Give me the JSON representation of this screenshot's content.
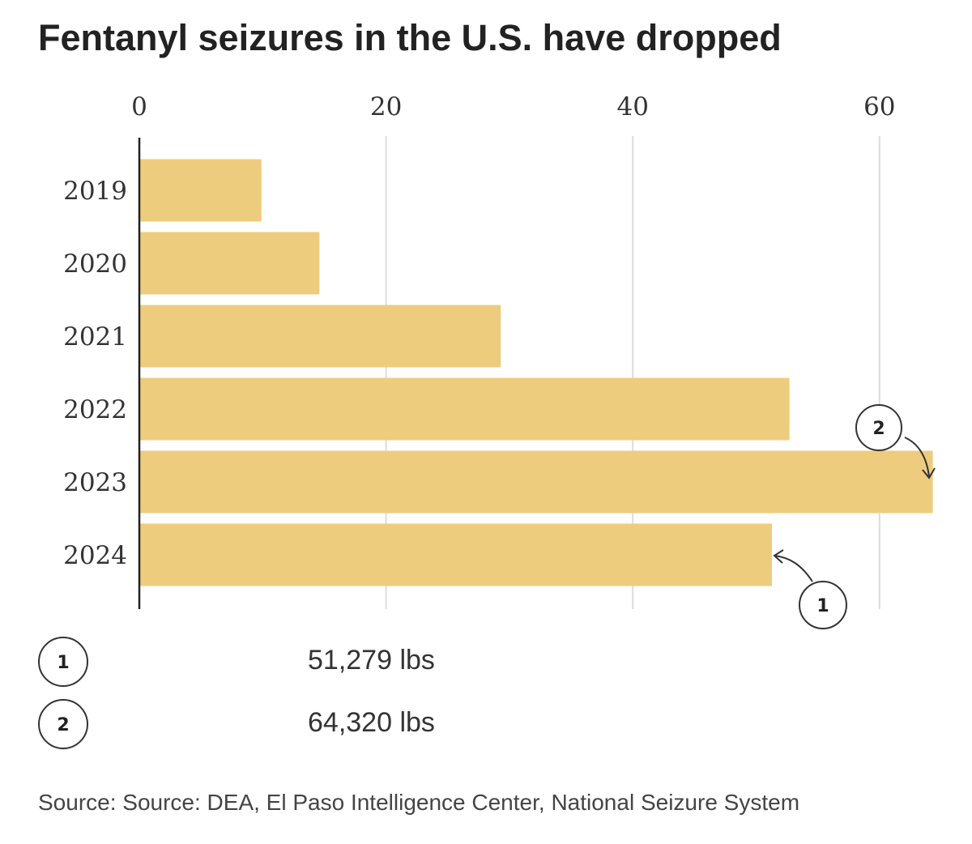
{
  "chart_data": {
    "type": "bar",
    "orientation": "horizontal",
    "title": "Fentanyl seizures in the U.S. have dropped",
    "categories": [
      "2019",
      "2020",
      "2021",
      "2022",
      "2023",
      "2024"
    ],
    "values": [
      9.9,
      14.6,
      29.3,
      52.7,
      64.32,
      51.279
    ],
    "unit_hint": "thousands of lbs",
    "xlim": [
      0,
      64.32
    ],
    "xticks": [
      0,
      20,
      40,
      60
    ],
    "tick_labels": [
      "0",
      "20",
      "40",
      "60"
    ],
    "grid": true,
    "bar_color": "#eecc7d",
    "annotations": [
      {
        "marker": "1",
        "category": "2024",
        "label": "51,279 lbs"
      },
      {
        "marker": "2",
        "category": "2023",
        "label": "64,320 lbs"
      }
    ],
    "source": "Source: Source: DEA, El Paso Intelligence Center, National Seizure System"
  }
}
